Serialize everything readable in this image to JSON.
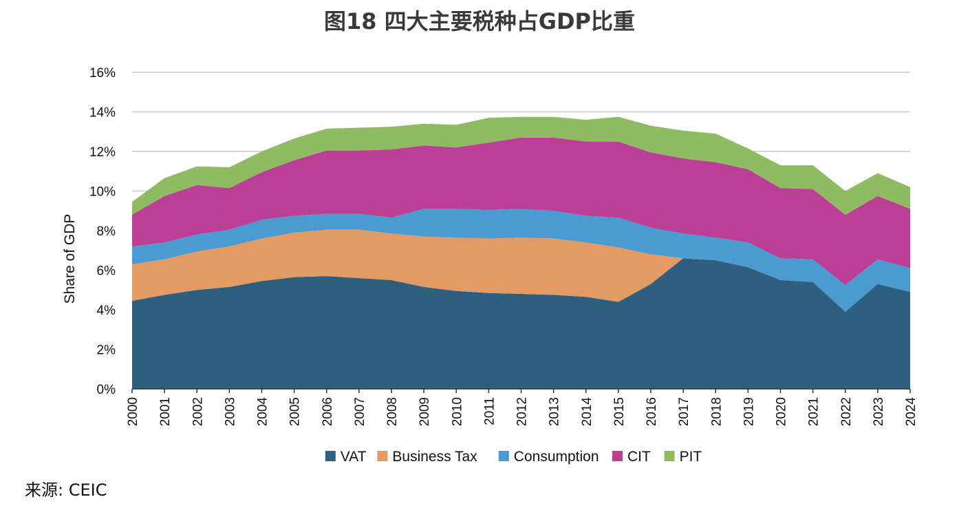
{
  "title": "图18 四大主要税种占GDP比重",
  "source": "来源: CEIC",
  "chart_data": {
    "type": "area",
    "stacked": true,
    "title": "图18 四大主要税种占GDP比重",
    "xlabel": "",
    "ylabel": "Share of GDP",
    "ylim": [
      0,
      16
    ],
    "yticks": [
      "0%",
      "2%",
      "4%",
      "6%",
      "8%",
      "10%",
      "12%",
      "14%",
      "16%"
    ],
    "grid": true,
    "legend_position": "bottom",
    "x": [
      "2000",
      "2001",
      "2002",
      "2003",
      "2004",
      "2005",
      "2006",
      "2007",
      "2008",
      "2009",
      "2010",
      "2011",
      "2012",
      "2013",
      "2014",
      "2015",
      "2016",
      "2017",
      "2018",
      "2019",
      "2020",
      "2021",
      "2022",
      "2023",
      "2024"
    ],
    "series": [
      {
        "name": "VAT",
        "color": "#2f5f7f",
        "values": [
          4.45,
          4.75,
          5.0,
          5.15,
          5.45,
          5.65,
          5.7,
          5.6,
          5.5,
          5.15,
          4.95,
          4.85,
          4.8,
          4.75,
          4.65,
          4.4,
          5.3,
          6.6,
          6.5,
          6.15,
          5.5,
          5.4,
          3.9,
          5.3,
          4.9
        ]
      },
      {
        "name": "Business Tax",
        "color": "#e39a63",
        "values": [
          1.85,
          1.8,
          1.95,
          2.05,
          2.15,
          2.25,
          2.35,
          2.45,
          2.35,
          2.55,
          2.7,
          2.75,
          2.85,
          2.85,
          2.75,
          2.75,
          1.5,
          0,
          0,
          0,
          0,
          0,
          0,
          0,
          0
        ]
      },
      {
        "name": "Consumption",
        "color": "#4a9bd1",
        "values": [
          0.9,
          0.85,
          0.85,
          0.85,
          0.95,
          0.85,
          0.8,
          0.8,
          0.8,
          1.4,
          1.45,
          1.45,
          1.45,
          1.4,
          1.35,
          1.5,
          1.35,
          1.25,
          1.15,
          1.25,
          1.1,
          1.15,
          1.35,
          1.25,
          1.2
        ]
      },
      {
        "name": "CIT",
        "color": "#bb3f94",
        "values": [
          1.6,
          2.35,
          2.5,
          2.1,
          2.4,
          2.8,
          3.2,
          3.2,
          3.45,
          3.2,
          3.1,
          3.4,
          3.6,
          3.7,
          3.75,
          3.85,
          3.8,
          3.8,
          3.8,
          3.7,
          3.55,
          3.55,
          3.55,
          3.2,
          3.0
        ]
      },
      {
        "name": "PIT",
        "color": "#8fbb62",
        "values": [
          0.65,
          0.9,
          0.95,
          1.05,
          1.05,
          1.1,
          1.1,
          1.15,
          1.15,
          1.1,
          1.15,
          1.25,
          1.05,
          1.05,
          1.1,
          1.25,
          1.35,
          1.4,
          1.45,
          1.05,
          1.15,
          1.2,
          1.2,
          1.15,
          1.1
        ]
      }
    ]
  }
}
